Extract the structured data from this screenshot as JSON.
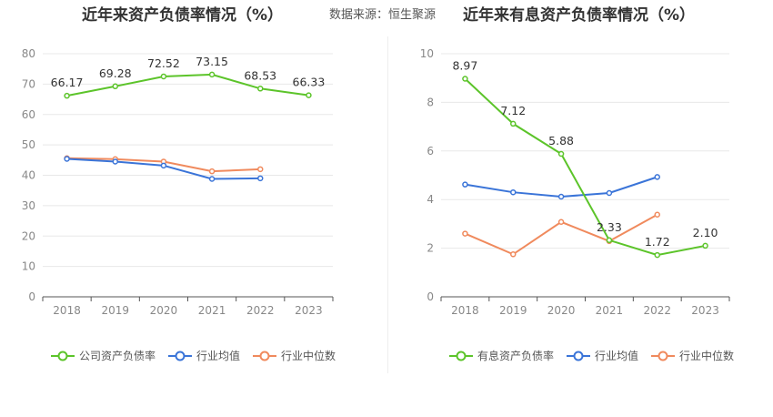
{
  "source_label": "数据来源：恒生聚源",
  "chart_data": [
    {
      "type": "line",
      "title": "近年来资产负债率情况（%）",
      "categories": [
        "2018",
        "2019",
        "2020",
        "2021",
        "2022",
        "2023"
      ],
      "ylim": [
        0,
        80
      ],
      "yticks": [
        0,
        10,
        20,
        30,
        40,
        50,
        60,
        70,
        80
      ],
      "grid": true,
      "legend_position": "bottom",
      "series": [
        {
          "name": "公司资产负债率",
          "color": "#5cc42a",
          "values": [
            66.17,
            69.28,
            72.52,
            73.15,
            68.53,
            66.33
          ],
          "labels": [
            "66.17",
            "69.28",
            "72.52",
            "73.15",
            "68.53",
            "66.33"
          ]
        },
        {
          "name": "行业均值",
          "color": "#3a74d8",
          "values": [
            45.4,
            44.5,
            43.2,
            38.8,
            39.0,
            null
          ]
        },
        {
          "name": "行业中位数",
          "color": "#f08a5d",
          "values": [
            45.6,
            45.3,
            44.5,
            41.3,
            42.0,
            null
          ]
        }
      ]
    },
    {
      "type": "line",
      "title": "近年来有息资产负债率情况（%）",
      "categories": [
        "2018",
        "2019",
        "2020",
        "2021",
        "2022",
        "2023"
      ],
      "ylim": [
        0,
        10
      ],
      "yticks": [
        0,
        2,
        4,
        6,
        8,
        10
      ],
      "grid": true,
      "legend_position": "bottom",
      "series": [
        {
          "name": "有息资产负债率",
          "color": "#5cc42a",
          "values": [
            8.97,
            7.12,
            5.88,
            2.33,
            1.72,
            2.1
          ],
          "labels": [
            "8.97",
            "7.12",
            "5.88",
            "2.33",
            "1.72",
            "2.10"
          ]
        },
        {
          "name": "行业均值",
          "color": "#3a74d8",
          "values": [
            4.62,
            4.3,
            4.12,
            4.27,
            4.93,
            null
          ]
        },
        {
          "name": "行业中位数",
          "color": "#f08a5d",
          "values": [
            2.6,
            1.75,
            3.08,
            2.29,
            3.38,
            null
          ]
        }
      ]
    }
  ]
}
